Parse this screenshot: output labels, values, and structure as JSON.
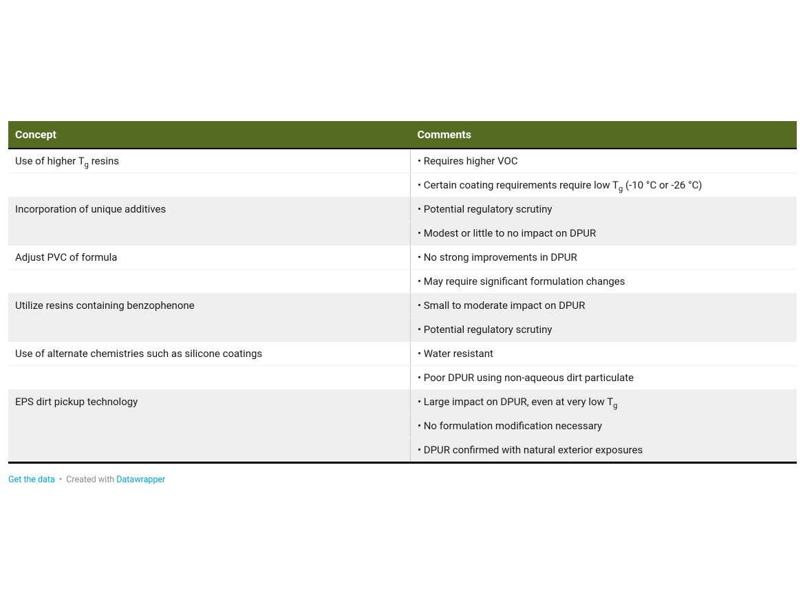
{
  "table": {
    "type": "table",
    "header_bg": "#566b22",
    "header_text_color": "#ffffff",
    "row_bg_alt": "#efefef",
    "row_bg": "#ffffff",
    "text_color": "#1a1a1a",
    "border_color_major": "#5a5a5a",
    "border_color_minor": "#f0f0f0",
    "col_divider_color": "#c8c8c8",
    "columns": [
      {
        "label": "Concept",
        "width_pct": 51
      },
      {
        "label": "Comments",
        "width_pct": 49
      }
    ],
    "groups": [
      {
        "alt": false,
        "concept_html": "Use of higher T<sub>g</sub> resins",
        "comments_html": [
          "• Requires higher VOC",
          "• Certain coating requirements require low T<sub>g</sub> (-10 °C or -26 °C)"
        ]
      },
      {
        "alt": true,
        "concept_html": "Incorporation of unique additives",
        "comments_html": [
          "• Potential regulatory scrutiny",
          "• Modest or little to no impact on DPUR"
        ]
      },
      {
        "alt": false,
        "concept_html": "Adjust PVC of formula",
        "comments_html": [
          "• No strong improvements in DPUR",
          "• May require significant formulation changes"
        ]
      },
      {
        "alt": true,
        "concept_html": "Utilize resins containing benzophenone",
        "comments_html": [
          "• Small to moderate impact on DPUR",
          "• Potential regulatory scrutiny"
        ]
      },
      {
        "alt": false,
        "concept_html": "Use of alternate chemistries such as silicone coatings",
        "comments_html": [
          "• Water resistant",
          "• Poor DPUR using non-aqueous dirt particulate"
        ]
      },
      {
        "alt": true,
        "concept_html": "EPS dirt pickup technology",
        "comments_html": [
          "• Large impact on DPUR, even at very low T<sub>g</sub>",
          "• No formulation modification necessary",
          "• DPUR confirmed with natural exterior exposures"
        ]
      }
    ]
  },
  "footer": {
    "get_data_label": "Get the data",
    "created_with_label": "Created with",
    "brand_label": "Datawrapper",
    "link_color": "#00a4d0",
    "text_color": "#8a8a8a"
  }
}
